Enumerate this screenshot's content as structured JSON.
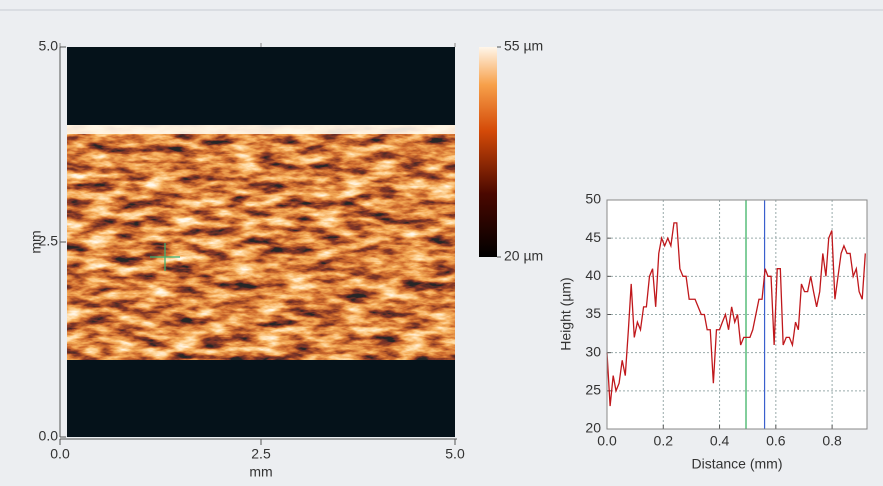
{
  "chart_data": [
    {
      "type": "image",
      "xlabel": "mm",
      "ylabel": "mm",
      "xlim": [
        0,
        5
      ],
      "ylim": [
        0,
        5
      ],
      "xticks": [
        {
          "value": 0,
          "label": "0.0"
        },
        2.5,
        {
          "value": 5,
          "label": "5.0"
        }
      ],
      "yticks": [
        {
          "value": 0,
          "label": "0.0"
        },
        2.5,
        {
          "value": 5,
          "label": "5.0"
        }
      ],
      "clim": [
        20,
        55
      ],
      "cticks": [
        {
          "value": 55,
          "label": "55 µm"
        },
        {
          "value": 20,
          "label": "20 µm"
        }
      ]
    },
    {
      "type": "line",
      "xlabel": "Distance (mm)",
      "ylabel": "Height (µm)",
      "x": [
        0,
        0.011,
        0.022,
        0.032,
        0.043,
        0.054,
        0.065,
        0.076,
        0.086,
        0.097,
        0.108,
        0.119,
        0.13,
        0.14,
        0.151,
        0.162,
        0.173,
        0.184,
        0.194,
        0.205,
        0.216,
        0.227,
        0.238,
        0.248,
        0.259,
        0.27,
        0.281,
        0.292,
        0.302,
        0.313,
        0.324,
        0.335,
        0.346,
        0.356,
        0.367,
        0.378,
        0.389,
        0.4,
        0.41,
        0.421,
        0.432,
        0.443,
        0.454,
        0.464,
        0.475,
        0.486,
        0.497,
        0.508,
        0.518,
        0.529,
        0.54,
        0.551,
        0.562,
        0.572,
        0.583,
        0.594,
        0.605,
        0.616,
        0.626,
        0.637,
        0.648,
        0.659,
        0.67,
        0.68,
        0.691,
        0.702,
        0.713,
        0.724,
        0.734,
        0.745,
        0.756,
        0.767,
        0.778,
        0.788,
        0.799,
        0.81,
        0.821,
        0.832,
        0.842,
        0.853,
        0.864,
        0.875,
        0.886,
        0.896,
        0.907,
        0.918
      ],
      "series": [
        {
          "color": "#c0181c",
          "values": [
            30,
            23,
            27,
            25,
            26,
            29,
            27,
            33,
            39,
            32,
            34,
            33,
            36,
            36,
            40,
            41,
            36,
            43,
            45,
            44,
            45,
            44,
            47,
            47,
            41,
            40,
            40,
            37,
            37,
            37,
            36,
            35,
            35,
            33,
            33,
            26,
            33,
            33,
            34,
            35,
            33,
            36,
            34,
            35,
            31,
            32,
            32,
            32,
            33,
            35,
            37,
            37,
            41,
            40,
            40,
            31,
            41,
            41,
            31,
            32,
            32,
            31,
            34,
            33,
            39,
            38,
            38,
            40,
            38,
            36,
            38,
            43,
            40,
            45,
            46,
            37,
            40,
            43,
            44,
            43,
            43,
            40,
            41,
            38,
            37,
            43
          ]
        }
      ],
      "xlim": [
        0,
        0.924
      ],
      "ylim": [
        20,
        50
      ],
      "xticks": [
        {
          "value": 0,
          "label": "0.0"
        },
        0.2,
        0.4,
        0.6,
        0.8
      ],
      "yticks": [
        20,
        25,
        30,
        35,
        40,
        45,
        50
      ],
      "grid": true,
      "cursors": [
        {
          "x": 0.494,
          "color": "#2fae5a"
        },
        {
          "x": 0.56,
          "color": "#3a5fcd"
        }
      ]
    }
  ]
}
